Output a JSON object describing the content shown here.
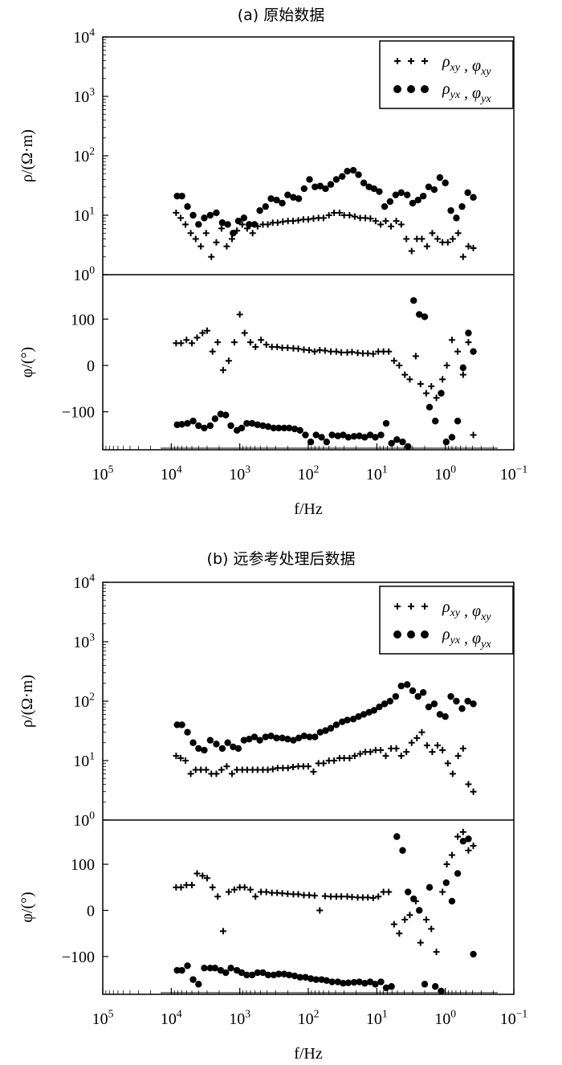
{
  "figure": {
    "chart_data": [
      {
        "type": "scatter",
        "title": "(a) 原始数据",
        "legend": [
          "ρxy , φxy",
          "ρyx , φyx"
        ],
        "legend_placement": "top-right",
        "x_label": "f/Hz",
        "x_scale": "log",
        "x_reversed": true,
        "x_range": [
          100000,
          0.1
        ],
        "x_tick_labels": [
          "10^5",
          "10^4",
          "10^3",
          "10^2",
          "10^1",
          "10^0",
          "10^-1"
        ],
        "rho_panel": {
          "y_label": "ρ/(Ω·m)",
          "y_scale": "log",
          "y_range": [
            1,
            10000
          ],
          "y_tick_labels": [
            "10^0",
            "10^1",
            "10^2",
            "10^3",
            "10^4"
          ],
          "xy": {
            "x": [
              8500,
              7300,
              6200,
              5200,
              4400,
              3700,
              3100,
              2600,
              2200,
              1850,
              1550,
              1300,
              1100,
              920,
              780,
              650,
              550,
              460,
              390,
              330,
              280,
              235,
              198,
              167,
              140,
              118,
              100,
              84,
              71,
              60,
              50,
              42,
              35,
              30,
              25,
              21,
              17.5,
              14.7,
              12.4,
              10.4,
              8.8,
              7.4,
              6.2,
              5.2,
              4.4,
              3.7,
              3.1,
              2.6,
              2.2,
              1.85,
              1.55,
              1.3,
              1.1,
              0.92,
              0.78,
              0.65,
              0.55,
              0.46,
              0.39
            ],
            "y": [
              11,
              9,
              7,
              5,
              4,
              3,
              5,
              2,
              3.5,
              6,
              3,
              4,
              5.5,
              7,
              6,
              5,
              6.5,
              7,
              7,
              7.5,
              7.5,
              7.8,
              8,
              8,
              8.2,
              8.5,
              8.5,
              8.8,
              9,
              9,
              10,
              11,
              11,
              10,
              10,
              9.5,
              9,
              9,
              8.8,
              8,
              7,
              8,
              6.5,
              8,
              7,
              4,
              2.5,
              4,
              4,
              3,
              5,
              4,
              3.5,
              3.5,
              4,
              5,
              2,
              3,
              2.8
            ]
          },
          "yx": {
            "x": [
              8200,
              7000,
              5800,
              4800,
              4000,
              3300,
              2700,
              2200,
              1800,
              1500,
              1250,
              1050,
              870,
              730,
              610,
              510,
              420,
              350,
              290,
              240,
              200,
              165,
              138,
              115,
              96,
              80,
              67,
              56,
              47,
              39,
              32,
              27,
              22,
              18.5,
              15.5,
              13,
              11,
              9.2,
              7.7,
              6.4,
              5.3,
              4.4,
              3.6,
              3,
              2.5,
              2.1,
              1.75,
              1.45,
              1.2,
              1,
              0.83,
              0.69,
              0.57,
              0.47,
              0.39
            ],
            "y": [
              21,
              21,
              14,
              10,
              7,
              9,
              10,
              11,
              7.5,
              7,
              5,
              8,
              9,
              7,
              7,
              12,
              14,
              19,
              18,
              16,
              22,
              20,
              19,
              28,
              40,
              30,
              31,
              28,
              33,
              40,
              45,
              55,
              57,
              48,
              35,
              30,
              28,
              25,
              14,
              17,
              22,
              24,
              22,
              16,
              18,
              21,
              30,
              27,
              43,
              35,
              12,
              9,
              14,
              24,
              20
            ]
          }
        },
        "phi_panel": {
          "y_label": "φ/(°)",
          "y_ticks": [
            100,
            0,
            -100
          ],
          "y_range": [
            -175,
            175
          ],
          "xy": {
            "x": [
              8500,
              7200,
              6000,
              5000,
              4200,
              3500,
              3000,
              2500,
              2100,
              1750,
              1450,
              1200,
              1000,
              850,
              700,
              590,
              490,
              410,
              340,
              285,
              240,
              200,
              165,
              140,
              116,
              97,
              81,
              68,
              57,
              47,
              39,
              33,
              27,
              23,
              19,
              16,
              13.5,
              11.3,
              9.5,
              8,
              6.7,
              5.6,
              4.7,
              3.9,
              3.3,
              2.7,
              2.3,
              1.9,
              1.6,
              1.35,
              1.1,
              0.95,
              0.8,
              0.66,
              0.55,
              0.46,
              0.39
            ],
            "y": [
              48,
              48,
              55,
              48,
              60,
              70,
              75,
              30,
              50,
              -10,
              10,
              50,
              110,
              70,
              50,
              40,
              55,
              45,
              40,
              40,
              38,
              38,
              37,
              36,
              34,
              33,
              30,
              33,
              32,
              30,
              30,
              28,
              28,
              29,
              27,
              26,
              26,
              25,
              30,
              30,
              30,
              10,
              0,
              -20,
              -30,
              20,
              -40,
              -60,
              -45,
              -70,
              -30,
              0,
              55,
              30,
              -20,
              50,
              -150
            ]
          },
          "yx": {
            "x": [
              8200,
              7000,
              5800,
              4800,
              4000,
              3300,
              2700,
              2300,
              1900,
              1600,
              1350,
              1100,
              940,
              790,
              660,
              550,
              460,
              385,
              320,
              270,
              225,
              190,
              158,
              132,
              110,
              92,
              77,
              64,
              54,
              45,
              37,
              31,
              26,
              21.5,
              18,
              15,
              12.5,
              10.5,
              8.7,
              7.3,
              6.1,
              5.1,
              4.2,
              3.5,
              2.9,
              2.4,
              2,
              1.7,
              1.4,
              1.15,
              0.97,
              0.8,
              0.66,
              0.55,
              0.46,
              0.39
            ],
            "y": [
              -128,
              -127,
              -125,
              -120,
              -130,
              -135,
              -130,
              -115,
              -105,
              -107,
              -130,
              -140,
              -135,
              -125,
              -125,
              -128,
              -130,
              -132,
              -135,
              -135,
              -135,
              -135,
              -137,
              -140,
              -150,
              -165,
              -150,
              -155,
              -165,
              -150,
              -152,
              -150,
              -155,
              -153,
              -152,
              -155,
              -150,
              -155,
              -150,
              -125,
              -168,
              -160,
              -165,
              -175,
              140,
              110,
              105,
              -90,
              -120,
              -60,
              -165,
              -155,
              -120,
              -5,
              70,
              30
            ]
          }
        }
      },
      {
        "type": "scatter",
        "title": "(b) 远参考处理后数据",
        "legend": [
          "ρxy , φxy",
          "ρyx , φyx"
        ],
        "legend_placement": "top-right",
        "x_label": "f/Hz",
        "x_scale": "log",
        "x_reversed": true,
        "x_range": [
          100000,
          0.1
        ],
        "x_tick_labels": [
          "10^5",
          "10^4",
          "10^3",
          "10^2",
          "10^1",
          "10^0",
          "10^-1"
        ],
        "rho_panel": {
          "y_label": "ρ/(Ω·m)",
          "y_scale": "log",
          "y_range": [
            1,
            10000
          ],
          "y_tick_labels": [
            "10^0",
            "10^1",
            "10^2",
            "10^3",
            "10^4"
          ],
          "xy": {
            "x": [
              8500,
              7300,
              6200,
              5200,
              4400,
              3700,
              3100,
              2600,
              2200,
              1850,
              1550,
              1300,
              1100,
              920,
              780,
              650,
              550,
              460,
              390,
              330,
              280,
              235,
              198,
              167,
              140,
              118,
              100,
              84,
              71,
              60,
              50,
              42,
              35,
              30,
              25,
              21,
              17.5,
              14.7,
              12.4,
              10.4,
              8.8,
              7.4,
              6.2,
              5.2,
              4.4,
              3.7,
              3.1,
              2.6,
              2.2,
              1.85,
              1.55,
              1.3,
              1.1,
              0.92,
              0.78,
              0.65,
              0.55,
              0.46,
              0.39
            ],
            "y": [
              12,
              11,
              10,
              6,
              7,
              7,
              7,
              6,
              6,
              7,
              8,
              6,
              7,
              7,
              7,
              7,
              7,
              7,
              7,
              7.2,
              7.5,
              7.5,
              7.5,
              7.8,
              8,
              8,
              8,
              6.5,
              9,
              9,
              10,
              10,
              11,
              11,
              11,
              12,
              13,
              14,
              14,
              15,
              15,
              12,
              16,
              16,
              12,
              14,
              20,
              24,
              30,
              18,
              14,
              18,
              15,
              9,
              6,
              12,
              16,
              4,
              3
            ]
          },
          "yx": {
            "x": [
              8200,
              7000,
              5800,
              4800,
              4000,
              3300,
              2700,
              2200,
              1800,
              1500,
              1250,
              1050,
              870,
              730,
              610,
              510,
              420,
              350,
              290,
              240,
              200,
              165,
              138,
              115,
              96,
              80,
              67,
              56,
              47,
              39,
              32,
              27,
              22,
              18.5,
              15.5,
              13,
              11,
              9.2,
              7.7,
              6.4,
              5.3,
              4.4,
              3.6,
              3,
              2.5,
              2.1,
              1.75,
              1.45,
              1.2,
              1,
              0.83,
              0.69,
              0.57,
              0.47,
              0.39
            ],
            "y": [
              40,
              40,
              30,
              20,
              16,
              15,
              22,
              19,
              16,
              20,
              17,
              16,
              22,
              23,
              25,
              22,
              25,
              26,
              24,
              24,
              23,
              22,
              24,
              26,
              25,
              25,
              30,
              32,
              35,
              40,
              45,
              48,
              50,
              55,
              60,
              65,
              70,
              80,
              90,
              100,
              120,
              180,
              190,
              150,
              120,
              140,
              80,
              90,
              60,
              55,
              120,
              100,
              75,
              100,
              90
            ]
          }
        },
        "phi_panel": {
          "y_label": "φ/(°)",
          "y_ticks": [
            100,
            0,
            -100
          ],
          "y_range": [
            -175,
            175
          ],
          "xy": {
            "x": [
              8500,
              7200,
              6000,
              5000,
              4200,
              3500,
              3000,
              2500,
              2100,
              1750,
              1450,
              1200,
              1000,
              850,
              700,
              590,
              490,
              410,
              340,
              285,
              240,
              200,
              165,
              140,
              116,
              97,
              81,
              68,
              57,
              47,
              39,
              33,
              27,
              23,
              19,
              16,
              13.5,
              11.3,
              9.5,
              8,
              6.7,
              5.6,
              4.7,
              3.9,
              3.3,
              2.7,
              2.3,
              1.9,
              1.6,
              1.35,
              1.1,
              0.95,
              0.8,
              0.66,
              0.55,
              0.46,
              0.39
            ],
            "y": [
              50,
              50,
              55,
              55,
              80,
              75,
              70,
              50,
              30,
              -45,
              40,
              45,
              50,
              50,
              45,
              30,
              40,
              40,
              38,
              38,
              37,
              36,
              35,
              35,
              33,
              33,
              32,
              0,
              31,
              30,
              30,
              30,
              30,
              29,
              28,
              28,
              28,
              27,
              30,
              40,
              40,
              -30,
              -50,
              -20,
              -10,
              20,
              -70,
              -20,
              -40,
              -90,
              40,
              100,
              120,
              160,
              170,
              130,
              140
            ]
          },
          "yx": {
            "x": [
              8200,
              7000,
              5800,
              4800,
              4000,
              3300,
              2700,
              2300,
              1900,
              1600,
              1350,
              1100,
              940,
              790,
              660,
              550,
              460,
              385,
              320,
              270,
              225,
              190,
              158,
              132,
              110,
              92,
              77,
              64,
              54,
              45,
              37,
              31,
              26,
              21.5,
              18,
              15,
              12.5,
              10.5,
              8.7,
              7.3,
              6.1,
              5.1,
              4.2,
              3.5,
              2.9,
              2.4,
              2,
              1.7,
              1.4,
              1.15,
              0.97,
              0.8,
              0.66,
              0.55,
              0.46,
              0.39
            ],
            "y": [
              -130,
              -130,
              -120,
              -150,
              -160,
              -125,
              -125,
              -125,
              -130,
              -135,
              -125,
              -130,
              -135,
              -140,
              -140,
              -135,
              -135,
              -140,
              -140,
              -138,
              -138,
              -140,
              -142,
              -145,
              -145,
              -148,
              -150,
              -150,
              -152,
              -155,
              -155,
              -158,
              -157,
              -156,
              -155,
              -158,
              -155,
              -160,
              -155,
              -168,
              -165,
              160,
              130,
              40,
              25,
              0,
              -160,
              50,
              -165,
              -175,
              60,
              20,
              80,
              150,
              155,
              -95
            ]
          }
        }
      }
    ]
  }
}
